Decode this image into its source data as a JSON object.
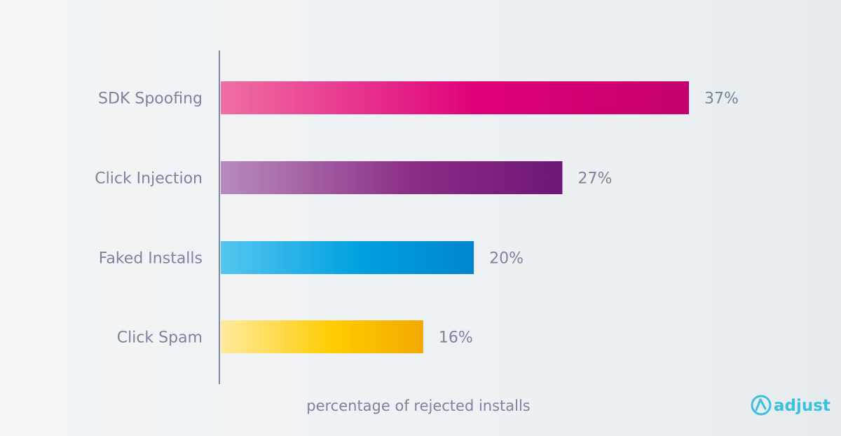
{
  "chart_data": {
    "type": "bar",
    "orientation": "horizontal",
    "categories": [
      "SDK Spoofing",
      "Click Injection",
      "Faked Installs",
      "Click Spam"
    ],
    "values": [
      37,
      27,
      20,
      16
    ],
    "value_labels": [
      "37%",
      "27%",
      "20%",
      "16%"
    ],
    "xlabel": "percentage of rejected installs",
    "ylabel": "",
    "xlim": [
      0,
      37
    ],
    "grid": false,
    "bar_colors": [
      [
        "#ef6fa3",
        "#e0007a",
        "#c4006e"
      ],
      [
        "#b98bbd",
        "#8a2f86",
        "#6e1677"
      ],
      [
        "#55c6ef",
        "#00a0e0",
        "#0085cd"
      ],
      [
        "#ffeaa0",
        "#ffcc00",
        "#f2a900"
      ]
    ]
  },
  "brand": {
    "name": "adjust",
    "logo_icon": "adjust-logo-icon",
    "color": "#3cc0dd"
  }
}
